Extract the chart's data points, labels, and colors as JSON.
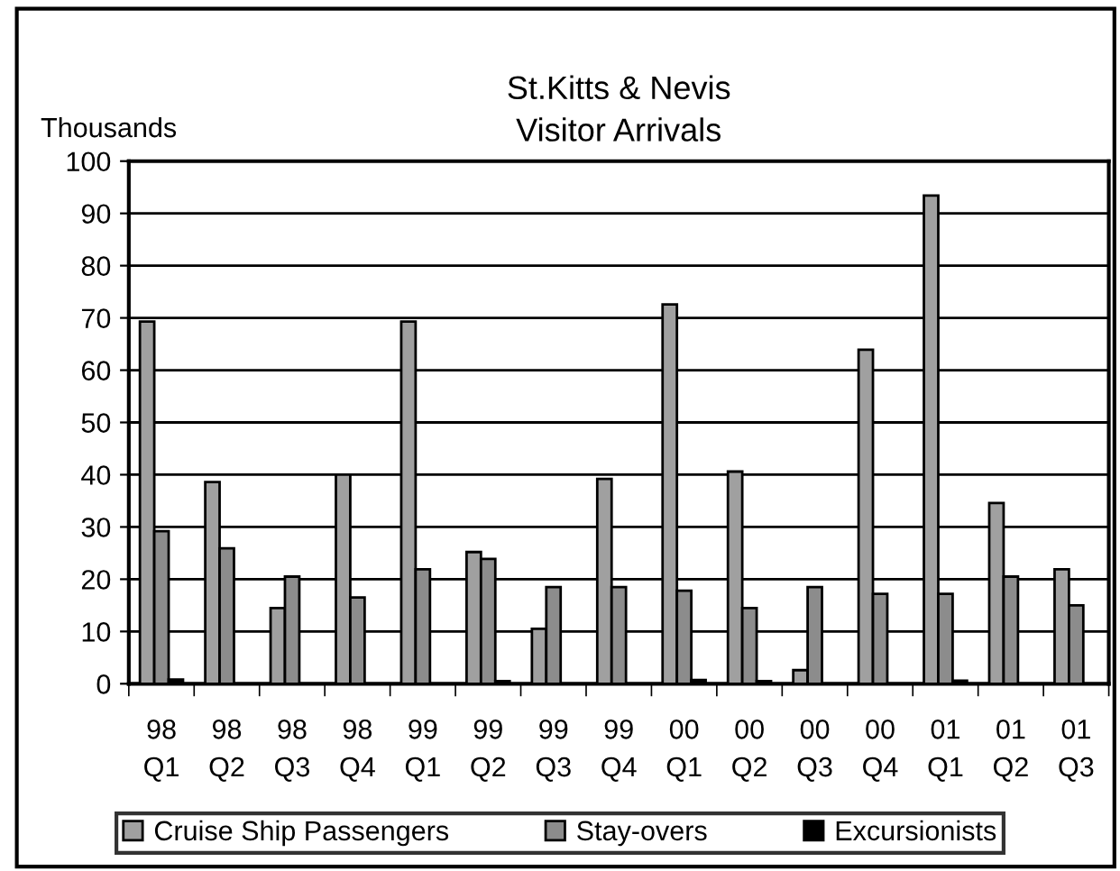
{
  "chart_data": {
    "type": "bar",
    "title": "St.Kitts & Nevis\nVisitor Arrivals",
    "ylabel": "Thousands",
    "categories": [
      "98\nQ1",
      "98\nQ2",
      "98\nQ3",
      "98\nQ4",
      "99\nQ1",
      "99\nQ2",
      "99\nQ3",
      "99\nQ4",
      "00\nQ1",
      "00\nQ2",
      "00\nQ3",
      "00\nQ4",
      "01\nQ1",
      "01\nQ2",
      "01\nQ3"
    ],
    "series": [
      {
        "name": "Cruise Ship Passengers",
        "color": "#a0a0a0",
        "values": [
          69.3,
          38.6,
          14.5,
          40,
          69.3,
          25.2,
          10.5,
          39.2,
          72.6,
          40.6,
          2.6,
          63.9,
          93.4,
          34.6,
          21.9
        ]
      },
      {
        "name": "Stay-overs",
        "color": "#8c8c8c",
        "values": [
          29.2,
          25.9,
          20.5,
          16.5,
          21.9,
          23.9,
          18.5,
          18.5,
          17.8,
          14.5,
          18.5,
          17.2,
          17.2,
          20.5,
          15
        ]
      },
      {
        "name": "Excursionists",
        "color": "#000000",
        "values": [
          0.8,
          0,
          0,
          0,
          0,
          0.5,
          0,
          0,
          0.7,
          0.5,
          0,
          0,
          0.6,
          0,
          0
        ]
      }
    ],
    "ylim": [
      0,
      100
    ],
    "yticks": [
      0,
      10,
      20,
      30,
      40,
      50,
      60,
      70,
      80,
      90,
      100
    ],
    "grid": "y",
    "legend": "bottom"
  }
}
